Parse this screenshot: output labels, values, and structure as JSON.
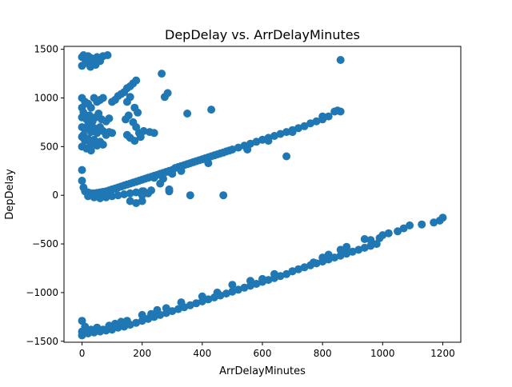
{
  "chart_data": {
    "type": "scatter",
    "title": "DepDelay vs. ArrDelayMinutes",
    "xlabel": "ArrDelayMinutes",
    "ylabel": "DepDelay",
    "xlim": [
      -60,
      1260
    ],
    "ylim": [
      -1510,
      1530
    ],
    "xticks": [
      0,
      200,
      400,
      600,
      800,
      1000,
      1200
    ],
    "yticks": [
      -1500,
      -1000,
      -500,
      0,
      500,
      1000,
      1500
    ],
    "xtick_labels": [
      "0",
      "200",
      "400",
      "600",
      "800",
      "1000",
      "1200"
    ],
    "ytick_labels": [
      "−1500",
      "−1000",
      "−500",
      "0",
      "500",
      "1000",
      "1500"
    ],
    "grid": false,
    "legend": "none",
    "marker_color": "#1f77b4",
    "series": [
      {
        "values": [
          [
            0,
            1420
          ],
          [
            5,
            1440
          ],
          [
            10,
            1400
          ],
          [
            15,
            1380
          ],
          [
            20,
            1430
          ],
          [
            25,
            1350
          ],
          [
            30,
            1410
          ],
          [
            40,
            1390
          ],
          [
            50,
            1420
          ],
          [
            60,
            1380
          ],
          [
            70,
            1430
          ],
          [
            85,
            1440
          ],
          [
            0,
            1330
          ],
          [
            12,
            1360
          ],
          [
            28,
            1320
          ],
          [
            45,
            1340
          ],
          [
            0,
            1000
          ],
          [
            10,
            960
          ],
          [
            20,
            940
          ],
          [
            30,
            900
          ],
          [
            40,
            1000
          ],
          [
            50,
            960
          ],
          [
            60,
            980
          ],
          [
            70,
            1000
          ],
          [
            0,
            900
          ],
          [
            0,
            800
          ],
          [
            5,
            850
          ],
          [
            15,
            780
          ],
          [
            25,
            820
          ],
          [
            35,
            760
          ],
          [
            45,
            800
          ],
          [
            55,
            840
          ],
          [
            65,
            780
          ],
          [
            80,
            760
          ],
          [
            90,
            790
          ],
          [
            0,
            700
          ],
          [
            10,
            680
          ],
          [
            20,
            720
          ],
          [
            30,
            650
          ],
          [
            40,
            690
          ],
          [
            50,
            640
          ],
          [
            60,
            700
          ],
          [
            70,
            660
          ],
          [
            80,
            620
          ],
          [
            90,
            650
          ],
          [
            100,
            640
          ],
          [
            0,
            600
          ],
          [
            10,
            560
          ],
          [
            20,
            580
          ],
          [
            30,
            530
          ],
          [
            40,
            570
          ],
          [
            50,
            510
          ],
          [
            60,
            550
          ],
          [
            70,
            520
          ],
          [
            0,
            500
          ],
          [
            15,
            480
          ],
          [
            30,
            460
          ],
          [
            5,
            620
          ],
          [
            25,
            740
          ],
          [
            100,
            960
          ],
          [
            110,
            980
          ],
          [
            120,
            1020
          ],
          [
            130,
            1040
          ],
          [
            140,
            1060
          ],
          [
            150,
            1100
          ],
          [
            160,
            1120
          ],
          [
            170,
            1150
          ],
          [
            180,
            1180
          ],
          [
            150,
            960
          ],
          [
            160,
            1010
          ],
          [
            175,
            900
          ],
          [
            185,
            850
          ],
          [
            170,
            750
          ],
          [
            180,
            700
          ],
          [
            155,
            820
          ],
          [
            145,
            780
          ],
          [
            265,
            1250
          ],
          [
            275,
            1010
          ],
          [
            285,
            1050
          ],
          [
            350,
            840
          ],
          [
            430,
            880
          ],
          [
            860,
            1390
          ],
          [
            160,
            590
          ],
          [
            175,
            560
          ],
          [
            190,
            640
          ],
          [
            205,
            660
          ],
          [
            225,
            650
          ],
          [
            240,
            640
          ],
          [
            150,
            620
          ],
          [
            195,
            600
          ],
          [
            0,
            260
          ],
          [
            0,
            150
          ],
          [
            5,
            80
          ],
          [
            10,
            40
          ],
          [
            20,
            30
          ],
          [
            30,
            20
          ],
          [
            40,
            20
          ],
          [
            50,
            25
          ],
          [
            60,
            30
          ],
          [
            70,
            35
          ],
          [
            80,
            40
          ],
          [
            90,
            50
          ],
          [
            100,
            60
          ],
          [
            110,
            70
          ],
          [
            120,
            80
          ],
          [
            130,
            90
          ],
          [
            140,
            100
          ],
          [
            150,
            110
          ],
          [
            160,
            120
          ],
          [
            170,
            130
          ],
          [
            180,
            140
          ],
          [
            190,
            150
          ],
          [
            200,
            160
          ],
          [
            210,
            170
          ],
          [
            220,
            180
          ],
          [
            230,
            190
          ],
          [
            240,
            200
          ],
          [
            250,
            210
          ],
          [
            260,
            220
          ],
          [
            270,
            230
          ],
          [
            280,
            240
          ],
          [
            290,
            250
          ],
          [
            300,
            260
          ],
          [
            310,
            280
          ],
          [
            320,
            290
          ],
          [
            330,
            300
          ],
          [
            340,
            310
          ],
          [
            350,
            320
          ],
          [
            360,
            330
          ],
          [
            370,
            340
          ],
          [
            380,
            350
          ],
          [
            390,
            360
          ],
          [
            400,
            370
          ],
          [
            410,
            380
          ],
          [
            420,
            390
          ],
          [
            430,
            400
          ],
          [
            440,
            410
          ],
          [
            450,
            420
          ],
          [
            460,
            430
          ],
          [
            470,
            440
          ],
          [
            480,
            450
          ],
          [
            490,
            460
          ],
          [
            500,
            470
          ],
          [
            520,
            490
          ],
          [
            540,
            510
          ],
          [
            560,
            530
          ],
          [
            580,
            550
          ],
          [
            600,
            570
          ],
          [
            620,
            590
          ],
          [
            640,
            610
          ],
          [
            660,
            630
          ],
          [
            680,
            650
          ],
          [
            700,
            670
          ],
          [
            720,
            690
          ],
          [
            740,
            710
          ],
          [
            760,
            740
          ],
          [
            780,
            760
          ],
          [
            800,
            780
          ],
          [
            820,
            810
          ],
          [
            840,
            860
          ],
          [
            850,
            870
          ],
          [
            860,
            860
          ],
          [
            800,
            810
          ],
          [
            20,
            -10
          ],
          [
            40,
            -20
          ],
          [
            60,
            -30
          ],
          [
            80,
            -20
          ],
          [
            100,
            -10
          ],
          [
            120,
            0
          ],
          [
            140,
            10
          ],
          [
            160,
            20
          ],
          [
            180,
            30
          ],
          [
            200,
            40
          ],
          [
            220,
            20
          ],
          [
            160,
            -60
          ],
          [
            200,
            -60
          ],
          [
            180,
            -80
          ],
          [
            205,
            40
          ],
          [
            240,
            180
          ],
          [
            270,
            170
          ],
          [
            290,
            240
          ],
          [
            300,
            220
          ],
          [
            290,
            40
          ],
          [
            360,
            0
          ],
          [
            470,
            0
          ],
          [
            290,
            60
          ],
          [
            200,
            0
          ],
          [
            230,
            50
          ],
          [
            260,
            120
          ],
          [
            330,
            250
          ],
          [
            420,
            330
          ],
          [
            550,
            470
          ],
          [
            680,
            400
          ],
          [
            620,
            560
          ],
          [
            700,
            650
          ],
          [
            0,
            -1440
          ],
          [
            20,
            -1420
          ],
          [
            40,
            -1410
          ],
          [
            60,
            -1400
          ],
          [
            80,
            -1390
          ],
          [
            100,
            -1380
          ],
          [
            120,
            -1360
          ],
          [
            140,
            -1350
          ],
          [
            160,
            -1330
          ],
          [
            180,
            -1310
          ],
          [
            200,
            -1290
          ],
          [
            220,
            -1270
          ],
          [
            240,
            -1250
          ],
          [
            260,
            -1230
          ],
          [
            280,
            -1210
          ],
          [
            300,
            -1190
          ],
          [
            320,
            -1170
          ],
          [
            340,
            -1150
          ],
          [
            360,
            -1130
          ],
          [
            380,
            -1110
          ],
          [
            400,
            -1090
          ],
          [
            420,
            -1070
          ],
          [
            440,
            -1050
          ],
          [
            460,
            -1030
          ],
          [
            480,
            -1010
          ],
          [
            500,
            -990
          ],
          [
            520,
            -970
          ],
          [
            540,
            -950
          ],
          [
            560,
            -930
          ],
          [
            580,
            -910
          ],
          [
            600,
            -890
          ],
          [
            620,
            -870
          ],
          [
            640,
            -850
          ],
          [
            660,
            -830
          ],
          [
            680,
            -810
          ],
          [
            700,
            -780
          ],
          [
            720,
            -760
          ],
          [
            740,
            -740
          ],
          [
            760,
            -720
          ],
          [
            780,
            -700
          ],
          [
            800,
            -680
          ],
          [
            820,
            -660
          ],
          [
            840,
            -640
          ],
          [
            860,
            -620
          ],
          [
            880,
            -600
          ],
          [
            900,
            -580
          ],
          [
            920,
            -560
          ],
          [
            940,
            -540
          ],
          [
            960,
            -520
          ],
          [
            980,
            -500
          ],
          [
            0,
            -1290
          ],
          [
            10,
            -1350
          ],
          [
            0,
            -1400
          ],
          [
            30,
            -1380
          ],
          [
            50,
            -1360
          ],
          [
            70,
            -1380
          ],
          [
            90,
            -1340
          ],
          [
            110,
            -1320
          ],
          [
            130,
            -1300
          ],
          [
            150,
            -1290
          ],
          [
            200,
            -1230
          ],
          [
            230,
            -1220
          ],
          [
            250,
            -1180
          ],
          [
            280,
            -1160
          ],
          [
            330,
            -1100
          ],
          [
            400,
            -1040
          ],
          [
            450,
            -1000
          ],
          [
            500,
            -920
          ],
          [
            560,
            -880
          ],
          [
            600,
            -860
          ],
          [
            640,
            -810
          ],
          [
            700,
            -780
          ],
          [
            770,
            -690
          ],
          [
            800,
            -680
          ],
          [
            800,
            -640
          ],
          [
            810,
            -650
          ],
          [
            820,
            -610
          ],
          [
            860,
            -560
          ],
          [
            880,
            -530
          ],
          [
            940,
            -450
          ],
          [
            960,
            -460
          ],
          [
            990,
            -440
          ],
          [
            1000,
            -410
          ],
          [
            1020,
            -390
          ],
          [
            1050,
            -370
          ],
          [
            1070,
            -340
          ],
          [
            1090,
            -310
          ],
          [
            1130,
            -300
          ],
          [
            1170,
            -280
          ],
          [
            1190,
            -260
          ],
          [
            1200,
            -230
          ]
        ]
      }
    ]
  }
}
